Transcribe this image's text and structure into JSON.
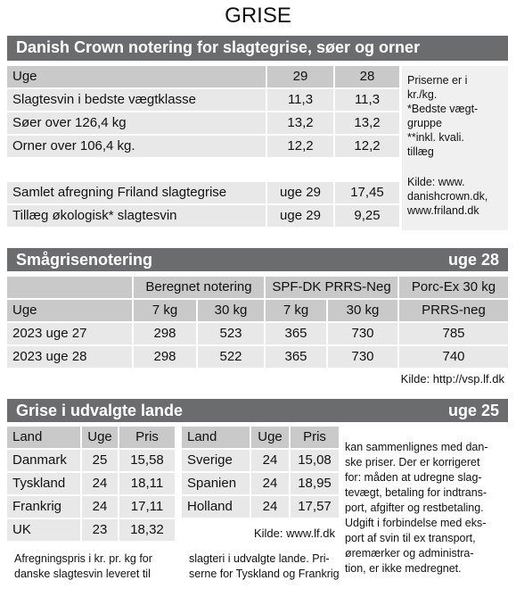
{
  "title": "GRISE",
  "section1": {
    "heading": "Danish Crown notering for slagtegrise, søer og orner",
    "header": [
      "Uge",
      "29",
      "28"
    ],
    "rows": [
      [
        "Slagtesvin i bedste vægtklasse",
        "11,3",
        "11,3"
      ],
      [
        "Søer over 126,4 kg",
        "13,2",
        "13,2"
      ],
      [
        "Orner over 106,4 kg.",
        "12,2",
        "12,2"
      ]
    ],
    "extra_rows": [
      [
        "Samlet afregning Friland slagtegrise",
        "uge 29",
        "17,45"
      ],
      [
        "Tillæg økologisk* slagtesvin",
        "uge 29",
        "9,25"
      ]
    ],
    "note": [
      "Priserne er i",
      "kr./kg.",
      "*Bedste vægt-",
      "gruppe",
      "**inkl. kvali.",
      "tillæg"
    ],
    "source": [
      "Kilde: www.",
      "danishcrown.dk,",
      "www.friland.dk"
    ]
  },
  "section2": {
    "heading": "Smågrisenotering",
    "week": "uge 28",
    "group_headers": [
      "Beregnet notering",
      "SPF-DK PRRS-Neg",
      "Porc-Ex 30 kg"
    ],
    "header": [
      "Uge",
      "7 kg",
      "30 kg",
      "7 kg",
      "30 kg",
      "PRRS-neg"
    ],
    "rows": [
      [
        "2023 uge 27",
        "298",
        "523",
        "365",
        "730",
        "785"
      ],
      [
        "2023 uge 28",
        "298",
        "522",
        "365",
        "730",
        "740"
      ]
    ],
    "source": "Kilde: http://vsp.lf.dk"
  },
  "section3": {
    "heading": "Grise i udvalgte lande",
    "week": "uge 25",
    "table_left": {
      "header": [
        "Land",
        "Uge",
        "Pris"
      ],
      "rows": [
        [
          "Danmark",
          "25",
          "15,58"
        ],
        [
          "Tyskland",
          "24",
          "18,11"
        ],
        [
          "Frankrig",
          "24",
          "17,11"
        ],
        [
          "UK",
          "23",
          "18,32"
        ]
      ]
    },
    "table_right": {
      "header": [
        "Land",
        "Uge",
        "Pris"
      ],
      "rows": [
        [
          "Sverige",
          "24",
          "15,08"
        ],
        [
          "Spanien",
          "24",
          "18,95"
        ],
        [
          "Holland",
          "24",
          "17,57"
        ]
      ],
      "source": "Kilde: www.lf.dk"
    },
    "text_right": [
      "kan sammenlignes med dan-",
      "ske priser. Der er korrigeret",
      "for: måden at udregne slag-",
      "tevægt, betaling for indtrans-",
      "port, afgifter og restbetaling.",
      "Udgift i forbindelse med eks-",
      "port af svin til ex transport,",
      "øremærker og administra-",
      "tion, er ikke medregnet."
    ],
    "text_bottom_left": [
      "Afregningspris i kr. pr. kg for",
      "danske slagtesvin leveret til"
    ],
    "text_bottom_mid": [
      "slagteri i udvalgte lande. Pri-",
      "serne for Tyskland og Frankrig"
    ]
  }
}
